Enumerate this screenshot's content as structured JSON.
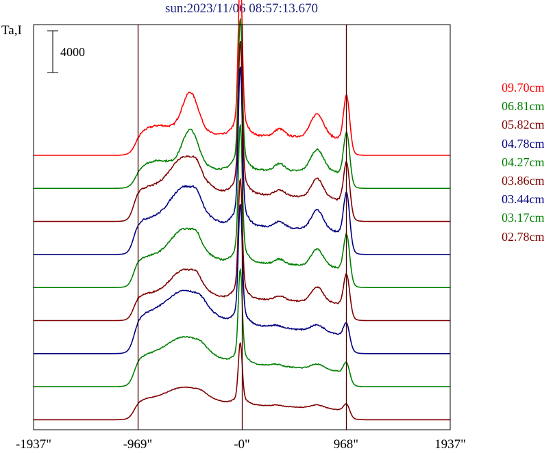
{
  "title": "sun:2023/11/06 08:57:13.670",
  "y_label": "Ta,I",
  "scale_bar_label": "4000",
  "chart_data": {
    "type": "line",
    "title": "sun:2023/11/06 08:57:13.670",
    "ylabel": "Ta,I",
    "xlabel": "",
    "xlim": [
      -1937,
      1937
    ],
    "x_ticks": [
      -1937,
      -969,
      0,
      968,
      1937
    ],
    "x_tick_labels": [
      "-1937\"",
      "-969\"",
      "-0\"",
      "968\"",
      "1937\""
    ],
    "vertical_lines": [
      -969,
      0,
      968
    ],
    "scale_bar_value": 4000,
    "grid": false,
    "legend_position": "right",
    "series": [
      {
        "name": "09.70cm",
        "color": "#ff0000",
        "baseline": 0,
        "peak": 22500,
        "shape": "high"
      },
      {
        "name": "06.81cm",
        "color": "#008000",
        "baseline": 0,
        "peak": 21000,
        "shape": "high"
      },
      {
        "name": "05.82cm",
        "color": "#800000",
        "baseline": 0,
        "peak": 21000,
        "shape": "mid"
      },
      {
        "name": "04.78cm",
        "color": "#000080",
        "baseline": 0,
        "peak": 22000,
        "shape": "mid"
      },
      {
        "name": "04.27cm",
        "color": "#008000",
        "baseline": 0,
        "peak": 19000,
        "shape": "mid"
      },
      {
        "name": "03.86cm",
        "color": "#800000",
        "baseline": 0,
        "peak": 16500,
        "shape": "mid"
      },
      {
        "name": "03.44cm",
        "color": "#000080",
        "baseline": 0,
        "peak": 16500,
        "shape": "low"
      },
      {
        "name": "03.17cm",
        "color": "#008000",
        "baseline": 0,
        "peak": 13000,
        "shape": "low"
      },
      {
        "name": "02.78cm",
        "color": "#800000",
        "baseline": 0,
        "peak": 8500,
        "shape": "low"
      }
    ]
  }
}
